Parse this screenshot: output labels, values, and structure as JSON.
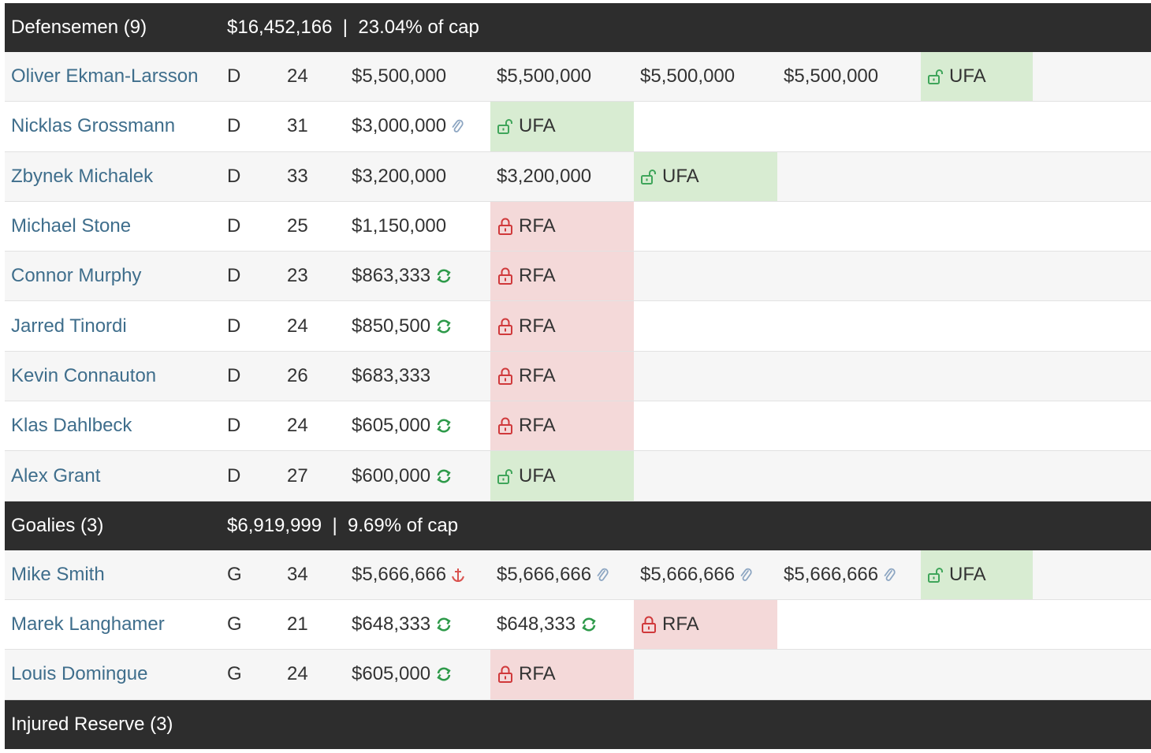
{
  "sections": [
    {
      "name": "Defensemen (9)",
      "summary": "$16,452,166  |  23.04% of cap"
    },
    {
      "name": "Goalies (3)",
      "summary": "$6,919,999  |  9.69% of cap"
    },
    {
      "name": "Injured Reserve (3)",
      "summary": ""
    }
  ],
  "colors": {
    "header_bg": "#2d2d2d",
    "link": "#3f6e8c",
    "ufa_bg": "#d8ecd2",
    "rfa_bg": "#f4d9d9",
    "ufa_icon": "#3fa55a",
    "rfa_icon": "#d0393b",
    "refresh_icon": "#2e9a4a",
    "paperclip_icon": "#8da6c2",
    "anchor_icon": "#d9534f"
  },
  "defensemen": [
    {
      "name": "Oliver Ekman-Larsson",
      "pos": "D",
      "age": "24",
      "y0": {
        "text": "$5,500,000"
      },
      "y1": {
        "text": "$5,500,000"
      },
      "y2": {
        "text": "$5,500,000"
      },
      "y3": {
        "text": "$5,500,000"
      },
      "y4": {
        "text": "UFA",
        "status": "ufa"
      }
    },
    {
      "name": "Nicklas Grossmann",
      "pos": "D",
      "age": "31",
      "y0": {
        "text": "$3,000,000",
        "icon": "paperclip-icon"
      },
      "y1": {
        "text": "UFA",
        "status": "ufa"
      }
    },
    {
      "name": "Zbynek Michalek",
      "pos": "D",
      "age": "33",
      "y0": {
        "text": "$3,200,000"
      },
      "y1": {
        "text": "$3,200,000"
      },
      "y2": {
        "text": "UFA",
        "status": "ufa"
      }
    },
    {
      "name": "Michael Stone",
      "pos": "D",
      "age": "25",
      "y0": {
        "text": "$1,150,000"
      },
      "y1": {
        "text": "RFA",
        "status": "rfa"
      }
    },
    {
      "name": "Connor Murphy",
      "pos": "D",
      "age": "23",
      "y0": {
        "text": "$863,333",
        "icon": "refresh-icon"
      },
      "y1": {
        "text": "RFA",
        "status": "rfa"
      }
    },
    {
      "name": "Jarred Tinordi",
      "pos": "D",
      "age": "24",
      "y0": {
        "text": "$850,500",
        "icon": "refresh-icon"
      },
      "y1": {
        "text": "RFA",
        "status": "rfa"
      }
    },
    {
      "name": "Kevin Connauton",
      "pos": "D",
      "age": "26",
      "y0": {
        "text": "$683,333"
      },
      "y1": {
        "text": "RFA",
        "status": "rfa"
      }
    },
    {
      "name": "Klas Dahlbeck",
      "pos": "D",
      "age": "24",
      "y0": {
        "text": "$605,000",
        "icon": "refresh-icon"
      },
      "y1": {
        "text": "RFA",
        "status": "rfa"
      }
    },
    {
      "name": "Alex Grant",
      "pos": "D",
      "age": "27",
      "y0": {
        "text": "$600,000",
        "icon": "refresh-icon"
      },
      "y1": {
        "text": "UFA",
        "status": "ufa"
      }
    }
  ],
  "goalies": [
    {
      "name": "Mike Smith",
      "pos": "G",
      "age": "34",
      "y0": {
        "text": "$5,666,666",
        "icon": "anchor-icon"
      },
      "y1": {
        "text": "$5,666,666",
        "icon": "paperclip-icon"
      },
      "y2": {
        "text": "$5,666,666",
        "icon": "paperclip-icon"
      },
      "y3": {
        "text": "$5,666,666",
        "icon": "paperclip-icon"
      },
      "y4": {
        "text": "UFA",
        "status": "ufa"
      }
    },
    {
      "name": "Marek Langhamer",
      "pos": "G",
      "age": "21",
      "y0": {
        "text": "$648,333",
        "icon": "refresh-icon"
      },
      "y1": {
        "text": "$648,333",
        "icon": "refresh-icon"
      },
      "y2": {
        "text": "RFA",
        "status": "rfa"
      }
    },
    {
      "name": "Louis Domingue",
      "pos": "G",
      "age": "24",
      "y0": {
        "text": "$605,000",
        "icon": "refresh-icon"
      },
      "y1": {
        "text": "RFA",
        "status": "rfa"
      }
    }
  ]
}
